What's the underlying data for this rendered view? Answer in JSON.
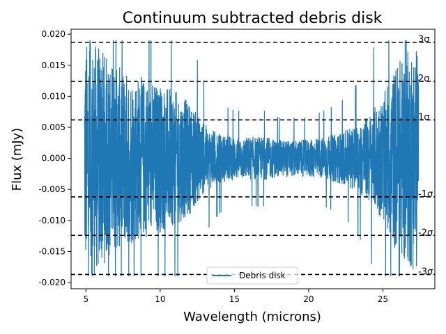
{
  "chart_data": {
    "type": "line",
    "title": "Continuum subtracted debris disk",
    "xlabel": "Wavelength (microns)",
    "ylabel": "Flux (mJy)",
    "xlim": [
      4.0,
      28.5
    ],
    "ylim": [
      -0.021,
      0.0208
    ],
    "xticks": [
      5,
      10,
      15,
      20,
      25
    ],
    "yticks": [
      -0.02,
      -0.015,
      -0.01,
      -0.005,
      0.0,
      0.005,
      0.01,
      0.015,
      0.02
    ],
    "ytick_labels": [
      "-0.020",
      "-0.015",
      "-0.010",
      "-0.005",
      "0.000",
      "0.005",
      "0.010",
      "0.015",
      "0.020"
    ],
    "grid": false,
    "legend_position": "bottom-center",
    "series": [
      {
        "name": "Debris disk",
        "color": "#1f77b4",
        "x_range": [
          4.9,
          27.4
        ],
        "clip_range": [
          -0.019,
          0.019
        ],
        "envelope": {
          "x": [
            4.9,
            5.5,
            7,
            9,
            10,
            11,
            12,
            13,
            14,
            15,
            16,
            17,
            18,
            19,
            20,
            21,
            22,
            23,
            24,
            25,
            26,
            27.4
          ],
          "amplitude": [
            0.019,
            0.019,
            0.015,
            0.013,
            0.012,
            0.011,
            0.009,
            0.0055,
            0.004,
            0.0035,
            0.0035,
            0.0035,
            0.003,
            0.003,
            0.003,
            0.0035,
            0.004,
            0.005,
            0.007,
            0.01,
            0.016,
            0.019
          ]
        }
      }
    ],
    "reference_lines": [
      {
        "y": 0.0187,
        "label": "3σ"
      },
      {
        "y": 0.0124,
        "label": "2σ"
      },
      {
        "y": 0.0062,
        "label": "1σ"
      },
      {
        "y": -0.0062,
        "label": "-1σ"
      },
      {
        "y": -0.0124,
        "label": "-2σ"
      },
      {
        "y": -0.0187,
        "label": "-3σ"
      }
    ],
    "reference_line_style": {
      "color": "#000000",
      "dash": "dashed"
    }
  }
}
